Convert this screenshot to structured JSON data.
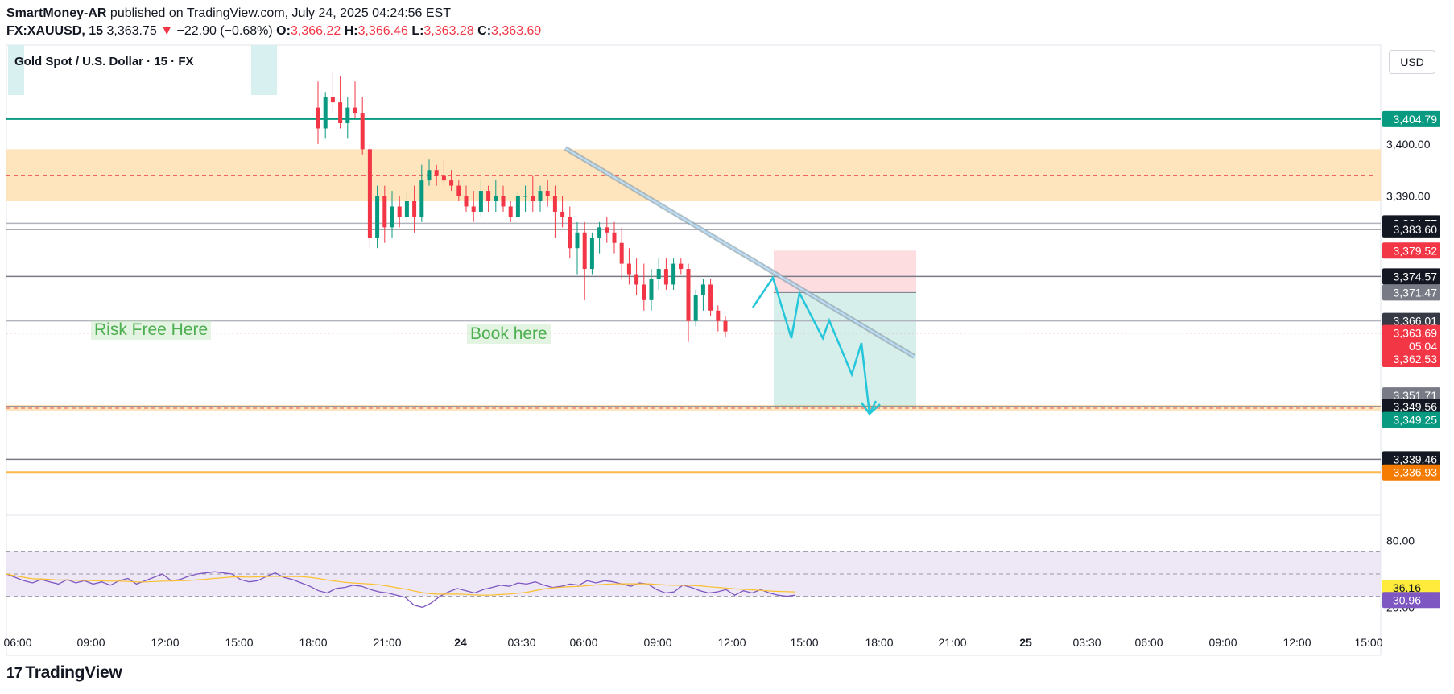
{
  "header": {
    "author": "SmartMoney-AR",
    "published_text": "published on TradingView.com, July 24, 2025 04:24:56 EST",
    "symbol": "FX:XAUUSD, 15",
    "last": "3,363.75",
    "change_arrow": "▼",
    "change": "−22.90 (−0.68%)",
    "o_label": "O:",
    "o": "3,366.22",
    "h_label": "H:",
    "h": "3,366.46",
    "l_label": "L:",
    "l": "3,363.28",
    "c_label": "C:",
    "c": "3,363.69"
  },
  "pair_title": "Gold Spot / U.S. Dollar · 15 · FX",
  "currency_button": "USD",
  "annotations": {
    "risk_free": "Risk Free Here",
    "book_here": "Book here"
  },
  "brand": {
    "logo_glyph": "17",
    "name": "TradingView"
  },
  "colors": {
    "up": "#089981",
    "down": "#f23645",
    "supply_zone": "#ffe0b2",
    "projection": "#26c6da",
    "trendline": "#90a4ae",
    "rsi": "#7e57c2",
    "rsi_ma": "#fbc02d",
    "rsi_band": "#ede7f6"
  },
  "chart_data": {
    "type": "candlestick",
    "symbol": "XAUUSD",
    "timeframe": "15",
    "ylim": [
      3329,
      3419
    ],
    "y_ticks": [
      "3,400.00",
      "3,390.00"
    ],
    "x_ticks": [
      "06:00",
      "09:00",
      "12:00",
      "15:00",
      "18:00",
      "21:00",
      "24",
      "03:30",
      "06:00",
      "09:00",
      "12:00",
      "15:00",
      "18:00",
      "21:00",
      "25",
      "03:30",
      "06:00",
      "09:00",
      "12:00",
      "15:00"
    ],
    "candles": [
      [
        3407,
        3412,
        3400,
        3403
      ],
      [
        3403,
        3410,
        3401,
        3409
      ],
      [
        3409,
        3414,
        3406,
        3408
      ],
      [
        3408,
        3413,
        3403,
        3404
      ],
      [
        3404,
        3409,
        3401,
        3407
      ],
      [
        3407,
        3412,
        3405,
        3406
      ],
      [
        3406,
        3409,
        3398,
        3399
      ],
      [
        3399,
        3400,
        3380,
        3382
      ],
      [
        3382,
        3392,
        3380,
        3390
      ],
      [
        3390,
        3392,
        3381,
        3384
      ],
      [
        3384,
        3391,
        3382,
        3388
      ],
      [
        3388,
        3390,
        3384,
        3386
      ],
      [
        3386,
        3391,
        3385,
        3389
      ],
      [
        3389,
        3392,
        3383,
        3386
      ],
      [
        3386,
        3396,
        3385,
        3393
      ],
      [
        3393,
        3397,
        3392,
        3395
      ],
      [
        3395,
        3396,
        3392,
        3394
      ],
      [
        3394,
        3397,
        3392,
        3393
      ],
      [
        3393,
        3395,
        3391,
        3392
      ],
      [
        3392,
        3393,
        3389,
        3390
      ],
      [
        3390,
        3392,
        3387,
        3388
      ],
      [
        3388,
        3391,
        3385,
        3387
      ],
      [
        3387,
        3393,
        3386,
        3391
      ],
      [
        3391,
        3392,
        3387,
        3389
      ],
      [
        3389,
        3393,
        3387,
        3390
      ],
      [
        3390,
        3392,
        3387,
        3388
      ],
      [
        3388,
        3389,
        3385,
        3386
      ],
      [
        3386,
        3391,
        3386,
        3390
      ],
      [
        3390,
        3392,
        3387,
        3390
      ],
      [
        3390,
        3394,
        3387,
        3389
      ],
      [
        3389,
        3392,
        3387,
        3391
      ],
      [
        3391,
        3393,
        3388,
        3390
      ],
      [
        3390,
        3392,
        3382,
        3387
      ],
      [
        3387,
        3390,
        3384,
        3386
      ],
      [
        3386,
        3388,
        3378,
        3380
      ],
      [
        3380,
        3385,
        3375,
        3383
      ],
      [
        3383,
        3385,
        3370,
        3376
      ],
      [
        3376,
        3383,
        3375,
        3382
      ],
      [
        3382,
        3385,
        3379,
        3384
      ],
      [
        3384,
        3386,
        3381,
        3383
      ],
      [
        3383,
        3385,
        3379,
        3381
      ],
      [
        3381,
        3384,
        3374,
        3377
      ],
      [
        3377,
        3380,
        3373,
        3375
      ],
      [
        3375,
        3378,
        3371,
        3373
      ],
      [
        3373,
        3377,
        3368,
        3370
      ],
      [
        3370,
        3376,
        3368,
        3374
      ],
      [
        3374,
        3378,
        3372,
        3376
      ],
      [
        3376,
        3378,
        3372,
        3373
      ],
      [
        3373,
        3378,
        3372,
        3377
      ],
      [
        3377,
        3378,
        3375,
        3376
      ],
      [
        3376,
        3377,
        3362,
        3366
      ],
      [
        3366,
        3372,
        3365,
        3371
      ],
      [
        3371,
        3374,
        3368,
        3373
      ],
      [
        3373,
        3374,
        3367,
        3368
      ],
      [
        3368,
        3369,
        3364,
        3366
      ],
      [
        3366,
        3367,
        3363,
        3364
      ]
    ],
    "horizontal_levels": [
      {
        "price": 3404.79,
        "color": "#089981"
      },
      {
        "price": 3384.77,
        "color": "#b2b5be"
      },
      {
        "price": 3383.6,
        "color": "#787b86"
      },
      {
        "price": 3374.57,
        "color": "#787b86"
      },
      {
        "price": 3366.01,
        "color": "#b2b5be"
      },
      {
        "price": 3349.56,
        "color": "#787b86"
      },
      {
        "price": 3339.46,
        "color": "#787b86"
      },
      {
        "price": 3336.93,
        "color": "#ffb74d"
      }
    ],
    "zones": [
      {
        "from": 3389,
        "to": 3399,
        "mid": 3394,
        "color": "#ffe0b2"
      },
      {
        "from": 3348.7,
        "to": 3349.9,
        "mid": 3349.25,
        "color": "#ffe0b2"
      }
    ],
    "position": {
      "entry": 3371.47,
      "stop": 3379.52,
      "target": 3349.56
    },
    "price_labels": [
      {
        "text": "3,404.79",
        "price": 3404.79,
        "bg": "#089981",
        "fg": "#ffffff"
      },
      {
        "text": "3,384.77",
        "price": 3384.77,
        "bg": "#131722",
        "fg": "#ffffff"
      },
      {
        "text": "3,383.60",
        "price": 3383.6,
        "bg": "#131722",
        "fg": "#ffffff"
      },
      {
        "text": "3,379.52",
        "price": 3379.52,
        "bg": "#f23645",
        "fg": "#ffffff"
      },
      {
        "text": "3,374.57",
        "price": 3374.57,
        "bg": "#131722",
        "fg": "#ffffff"
      },
      {
        "text": "3,371.47",
        "price": 3371.47,
        "bg": "#787b86",
        "fg": "#ffffff"
      },
      {
        "text": "3,366.01",
        "price": 3366.01,
        "bg": "#363a45",
        "fg": "#ffffff"
      },
      {
        "text": "3,363.69",
        "price": 3363.69,
        "bg": "#f23645",
        "fg": "#ffffff"
      },
      {
        "text": "05:04",
        "price": 3361.2,
        "bg": "#f23645",
        "fg": "#ffffff"
      },
      {
        "text": "3,362.53",
        "price": 3358.7,
        "bg": "#f23645",
        "fg": "#ffffff"
      },
      {
        "text": "3,351.71",
        "price": 3351.71,
        "bg": "#787b86",
        "fg": "#ffffff"
      },
      {
        "text": "3,349.56",
        "price": 3349.56,
        "bg": "#131722",
        "fg": "#ffffff"
      },
      {
        "text": "3,349.25",
        "price": 3347.0,
        "bg": "#089981",
        "fg": "#ffffff"
      },
      {
        "text": "3,339.46",
        "price": 3339.46,
        "bg": "#131722",
        "fg": "#ffffff"
      },
      {
        "text": "3,336.93",
        "price": 3336.93,
        "bg": "#f57c00",
        "fg": "#ffffff"
      }
    ],
    "rsi": {
      "ylim": [
        0,
        100
      ],
      "upper": 70,
      "lower": 30,
      "mid": 50,
      "tick_labels": [
        "80.00",
        "20.00"
      ],
      "value": "30.96",
      "ma_value": "36.16",
      "values": [
        50,
        47,
        44,
        42,
        45,
        43,
        41,
        45,
        42,
        44,
        41,
        43,
        40,
        44,
        46,
        41,
        44,
        47,
        50,
        44,
        45,
        48,
        50,
        51,
        52,
        51,
        50,
        45,
        43,
        44,
        48,
        51,
        47,
        45,
        42,
        39,
        35,
        33,
        37,
        38,
        40,
        39,
        36,
        34,
        33,
        31,
        29,
        22,
        20,
        24,
        30,
        34,
        37,
        35,
        33,
        36,
        38,
        40,
        39,
        42,
        41,
        43,
        40,
        38,
        39,
        41,
        40,
        44,
        42,
        44,
        43,
        41,
        39,
        42,
        41,
        36,
        33,
        34,
        40,
        38,
        35,
        33,
        34,
        36,
        31,
        35,
        33,
        36,
        33,
        31,
        30,
        31
      ]
    }
  }
}
